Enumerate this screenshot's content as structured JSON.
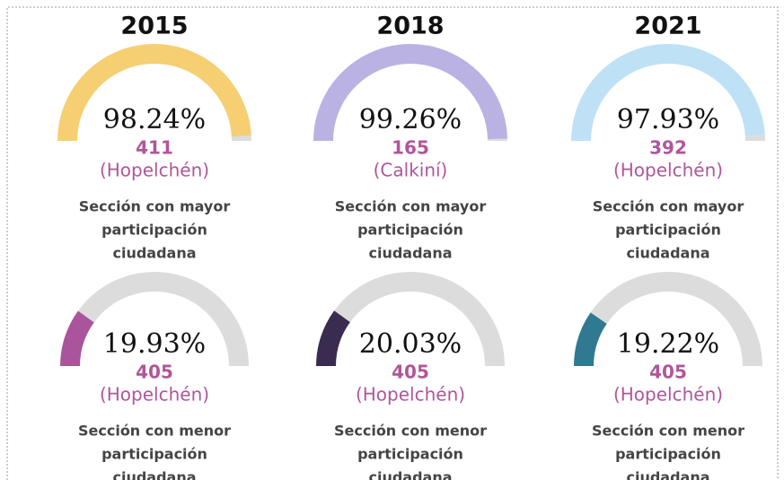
{
  "chart_data": [
    {
      "type": "gauge",
      "title": "2015",
      "values": [
        98.24
      ],
      "value_labels": [
        "98.24%"
      ],
      "ylim": [
        0,
        100
      ],
      "color": "#f5cf72",
      "section": "411",
      "municipality": "(Hopelchén)",
      "caption": [
        "Sección con mayor",
        "participación",
        "ciudadana"
      ]
    },
    {
      "type": "gauge",
      "title": "2018",
      "values": [
        99.26
      ],
      "value_labels": [
        "99.26%"
      ],
      "ylim": [
        0,
        100
      ],
      "color": "#b9b2e3",
      "section": "165",
      "municipality": "(Calkiní)",
      "caption": [
        "Sección con mayor",
        "participación",
        "ciudadana"
      ]
    },
    {
      "type": "gauge",
      "title": "2021",
      "values": [
        97.93
      ],
      "value_labels": [
        "97.93%"
      ],
      "ylim": [
        0,
        100
      ],
      "color": "#bfe1f6",
      "section": "392",
      "municipality": "(Hopelchén)",
      "caption": [
        "Sección con mayor",
        "participación",
        "ciudadana"
      ]
    },
    {
      "type": "gauge",
      "values": [
        19.93
      ],
      "value_labels": [
        "19.93%"
      ],
      "ylim": [
        0,
        100
      ],
      "color": "#aa559b",
      "section": "405",
      "municipality": "(Hopelchén)",
      "caption": [
        "Sección con menor",
        "participación",
        "ciudadana"
      ]
    },
    {
      "type": "gauge",
      "values": [
        20.03
      ],
      "value_labels": [
        "20.03%"
      ],
      "ylim": [
        0,
        100
      ],
      "color": "#3a2c50",
      "section": "405",
      "municipality": "(Hopelchén)",
      "caption": [
        "Sección con menor",
        "participación",
        "ciudadana"
      ]
    },
    {
      "type": "gauge",
      "values": [
        19.22
      ],
      "value_labels": [
        "19.22%"
      ],
      "ylim": [
        0,
        100
      ],
      "color": "#2f7a90",
      "section": "405",
      "municipality": "(Hopelchén)",
      "caption": [
        "Sección con menor",
        "participación",
        "ciudadana"
      ]
    }
  ]
}
